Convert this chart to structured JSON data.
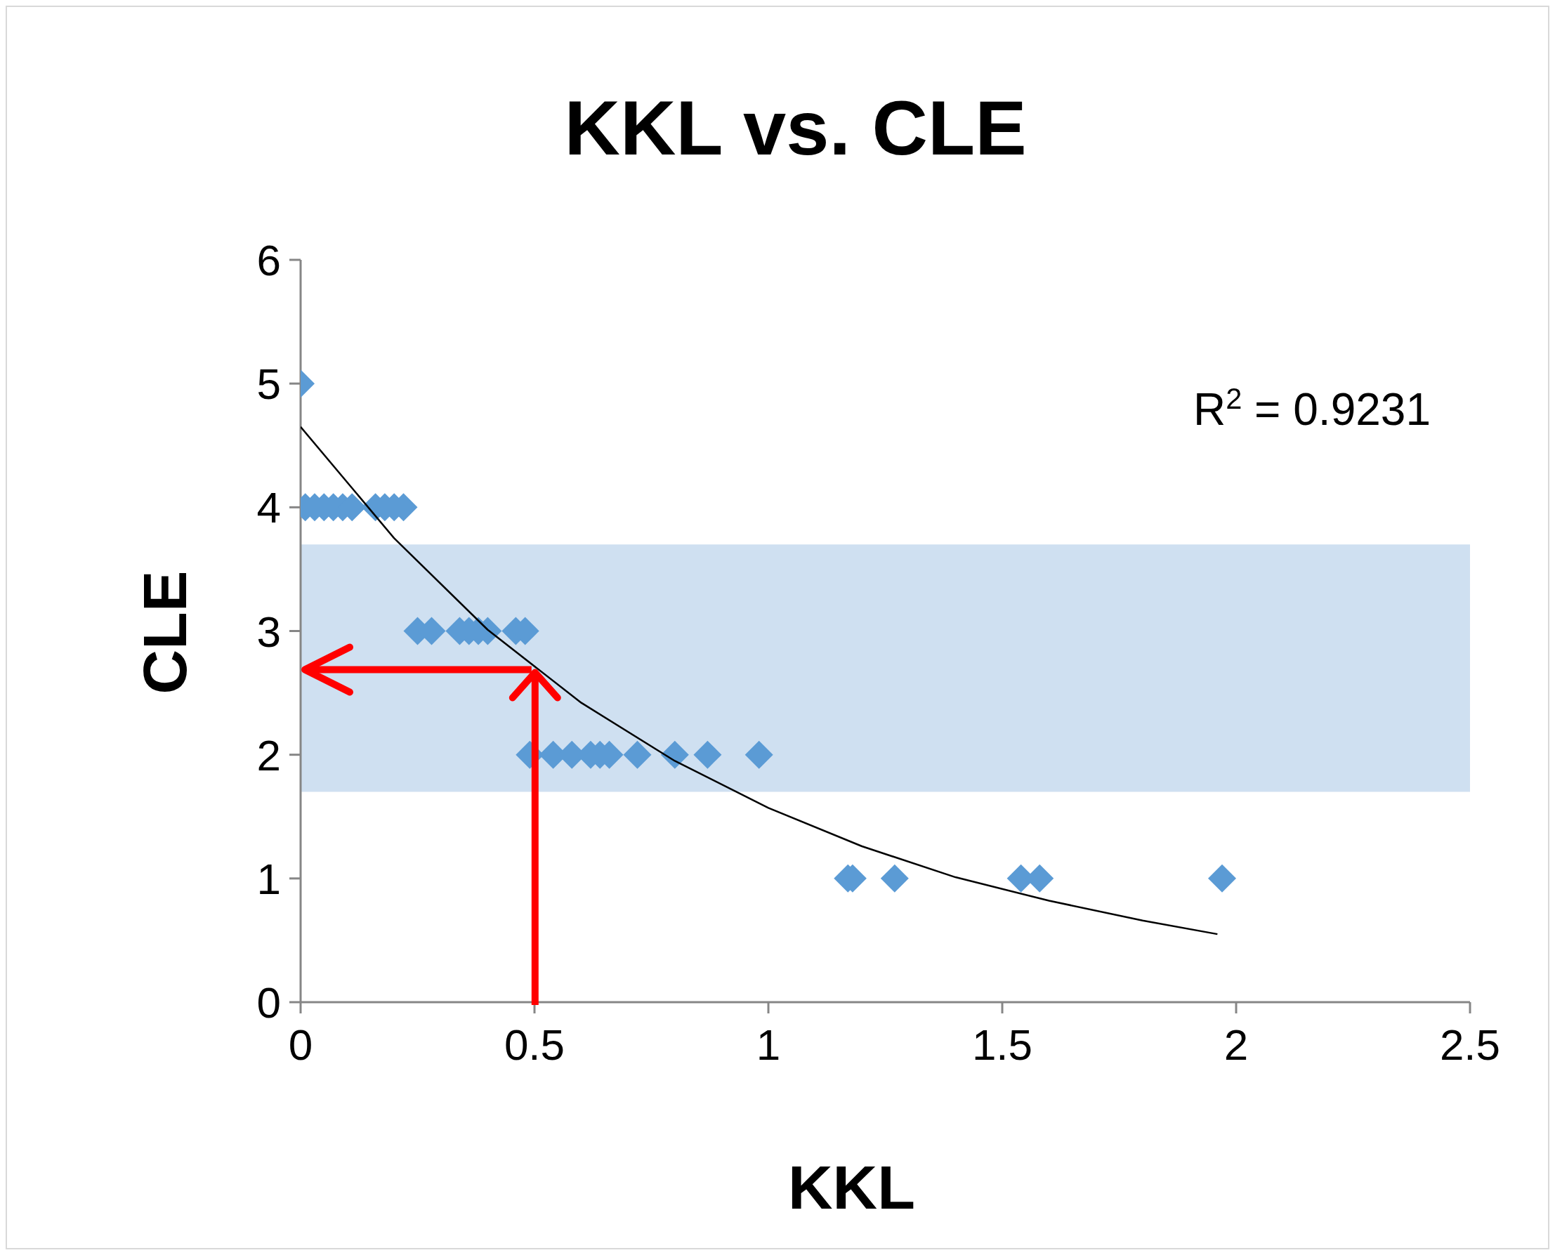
{
  "chart_data": {
    "type": "scatter",
    "title": "KKL vs. CLE",
    "xlabel": "KKL",
    "ylabel": "CLE",
    "marker": "diamond",
    "grid": false,
    "legend": false,
    "xlim": [
      0,
      2.5
    ],
    "xticks": [
      0,
      0.5,
      1,
      1.5,
      2,
      2.5
    ],
    "ylim": [
      0,
      6
    ],
    "yticks": [
      0,
      1,
      2,
      3,
      4,
      5,
      6
    ],
    "series": [
      {
        "color": "#5b9bd5",
        "x": [
          0,
          0.01,
          0.03,
          0.05,
          0.07,
          0.09,
          0.11,
          0.16,
          0.18,
          0.2,
          0.22,
          0.25,
          0.28,
          0.34,
          0.36,
          0.38,
          0.4,
          0.46,
          0.48,
          0.49,
          0.54,
          0.58,
          0.62,
          0.64,
          0.66,
          0.72,
          0.8,
          0.87,
          0.98,
          1.17,
          1.18,
          1.27,
          1.54,
          1.58,
          1.97
        ],
        "values": [
          5,
          4,
          4,
          4,
          4,
          4,
          4,
          4,
          4,
          4,
          4,
          3,
          3,
          3,
          3,
          3,
          3,
          3,
          3,
          2,
          2,
          2,
          2,
          2,
          2,
          2,
          2,
          2,
          2,
          1,
          1,
          1,
          1,
          1,
          1
        ]
      },
      {
        "type": "line",
        "color": "#000000",
        "marker": "none",
        "x": [
          0,
          0.2,
          0.4,
          0.6,
          0.8,
          1,
          1.2,
          1.4,
          1.6,
          1.8,
          1.96
        ],
        "values": [
          4.65,
          3.75,
          3.01,
          2.42,
          1.95,
          1.57,
          1.26,
          1.01,
          0.82,
          0.66,
          0.55
        ]
      }
    ],
    "bands": [
      {
        "axis": "y",
        "from": 1.7,
        "to": 3.7,
        "color": "#cfe0f1"
      }
    ],
    "ref_lines": [
      {
        "axis": "x",
        "value": 0.5,
        "color": "#ff0000"
      },
      {
        "axis": "y",
        "value": 2.7,
        "color": "#ff0000"
      }
    ],
    "annotations": [
      "R$^{2}$ = 0.9231"
    ]
  }
}
